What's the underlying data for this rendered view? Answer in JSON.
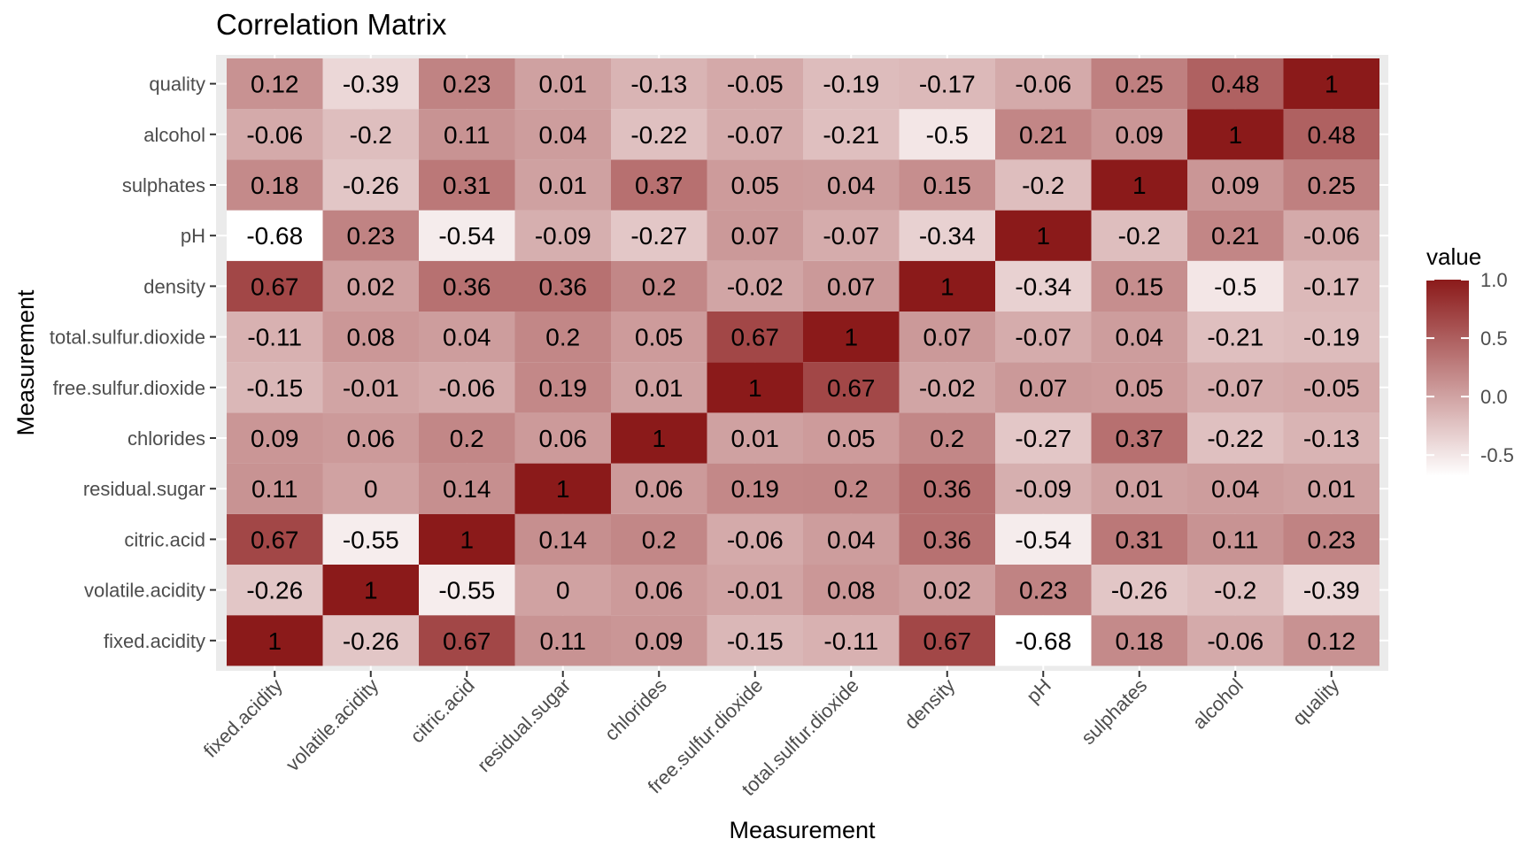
{
  "chart_data": {
    "type": "heatmap",
    "title": "Correlation Matrix",
    "xlabel": "Measurement",
    "ylabel": "Measurement",
    "variables": [
      "fixed.acidity",
      "volatile.acidity",
      "citric.acid",
      "residual.sugar",
      "chlorides",
      "free.sulfur.dioxide",
      "total.sulfur.dioxide",
      "density",
      "pH",
      "sulphates",
      "alcohol",
      "quality"
    ],
    "matrix": [
      [
        1,
        -0.26,
        0.67,
        0.11,
        0.09,
        -0.15,
        -0.11,
        0.67,
        -0.68,
        0.18,
        -0.06,
        0.12
      ],
      [
        -0.26,
        1,
        -0.55,
        0,
        0.06,
        -0.01,
        0.08,
        0.02,
        0.23,
        -0.26,
        -0.2,
        -0.39
      ],
      [
        0.67,
        -0.55,
        1,
        0.14,
        0.2,
        -0.06,
        0.04,
        0.36,
        -0.54,
        0.31,
        0.11,
        0.23
      ],
      [
        0.11,
        0,
        0.14,
        1,
        0.06,
        0.19,
        0.2,
        0.36,
        -0.09,
        0.01,
        0.04,
        0.01
      ],
      [
        0.09,
        0.06,
        0.2,
        0.06,
        1,
        0.01,
        0.05,
        0.2,
        -0.27,
        0.37,
        -0.22,
        -0.13
      ],
      [
        -0.15,
        -0.01,
        -0.06,
        0.19,
        0.01,
        1,
        0.67,
        -0.02,
        0.07,
        0.05,
        -0.07,
        -0.05
      ],
      [
        -0.11,
        0.08,
        0.04,
        0.2,
        0.05,
        0.67,
        1,
        0.07,
        -0.07,
        0.04,
        -0.21,
        -0.19
      ],
      [
        0.67,
        0.02,
        0.36,
        0.36,
        0.2,
        -0.02,
        0.07,
        1,
        -0.34,
        0.15,
        -0.5,
        -0.17
      ],
      [
        -0.68,
        0.23,
        -0.54,
        -0.09,
        -0.27,
        0.07,
        -0.07,
        -0.34,
        1,
        -0.2,
        0.21,
        -0.06
      ],
      [
        0.18,
        -0.26,
        0.31,
        0.01,
        0.37,
        0.05,
        0.04,
        0.15,
        -0.2,
        1,
        0.09,
        0.25
      ],
      [
        -0.06,
        -0.2,
        0.11,
        0.04,
        -0.22,
        -0.07,
        -0.21,
        -0.5,
        0.21,
        0.09,
        1,
        0.48
      ],
      [
        0.12,
        -0.39,
        0.23,
        0.01,
        -0.13,
        -0.05,
        -0.19,
        -0.17,
        -0.06,
        0.25,
        0.48,
        1
      ]
    ],
    "legend": {
      "title": "value",
      "ticks": [
        1.0,
        0.5,
        0.0,
        -0.5
      ],
      "tick_labels": [
        "1.0",
        "0.5",
        "0.0",
        "-0.5"
      ],
      "range": [
        -0.68,
        1
      ],
      "placement": "right"
    },
    "colors": {
      "low": "#ffffff",
      "high": "#8b1a1a",
      "panel_background": "#ebebeb",
      "grid": "#ffffff"
    },
    "grid": true
  }
}
